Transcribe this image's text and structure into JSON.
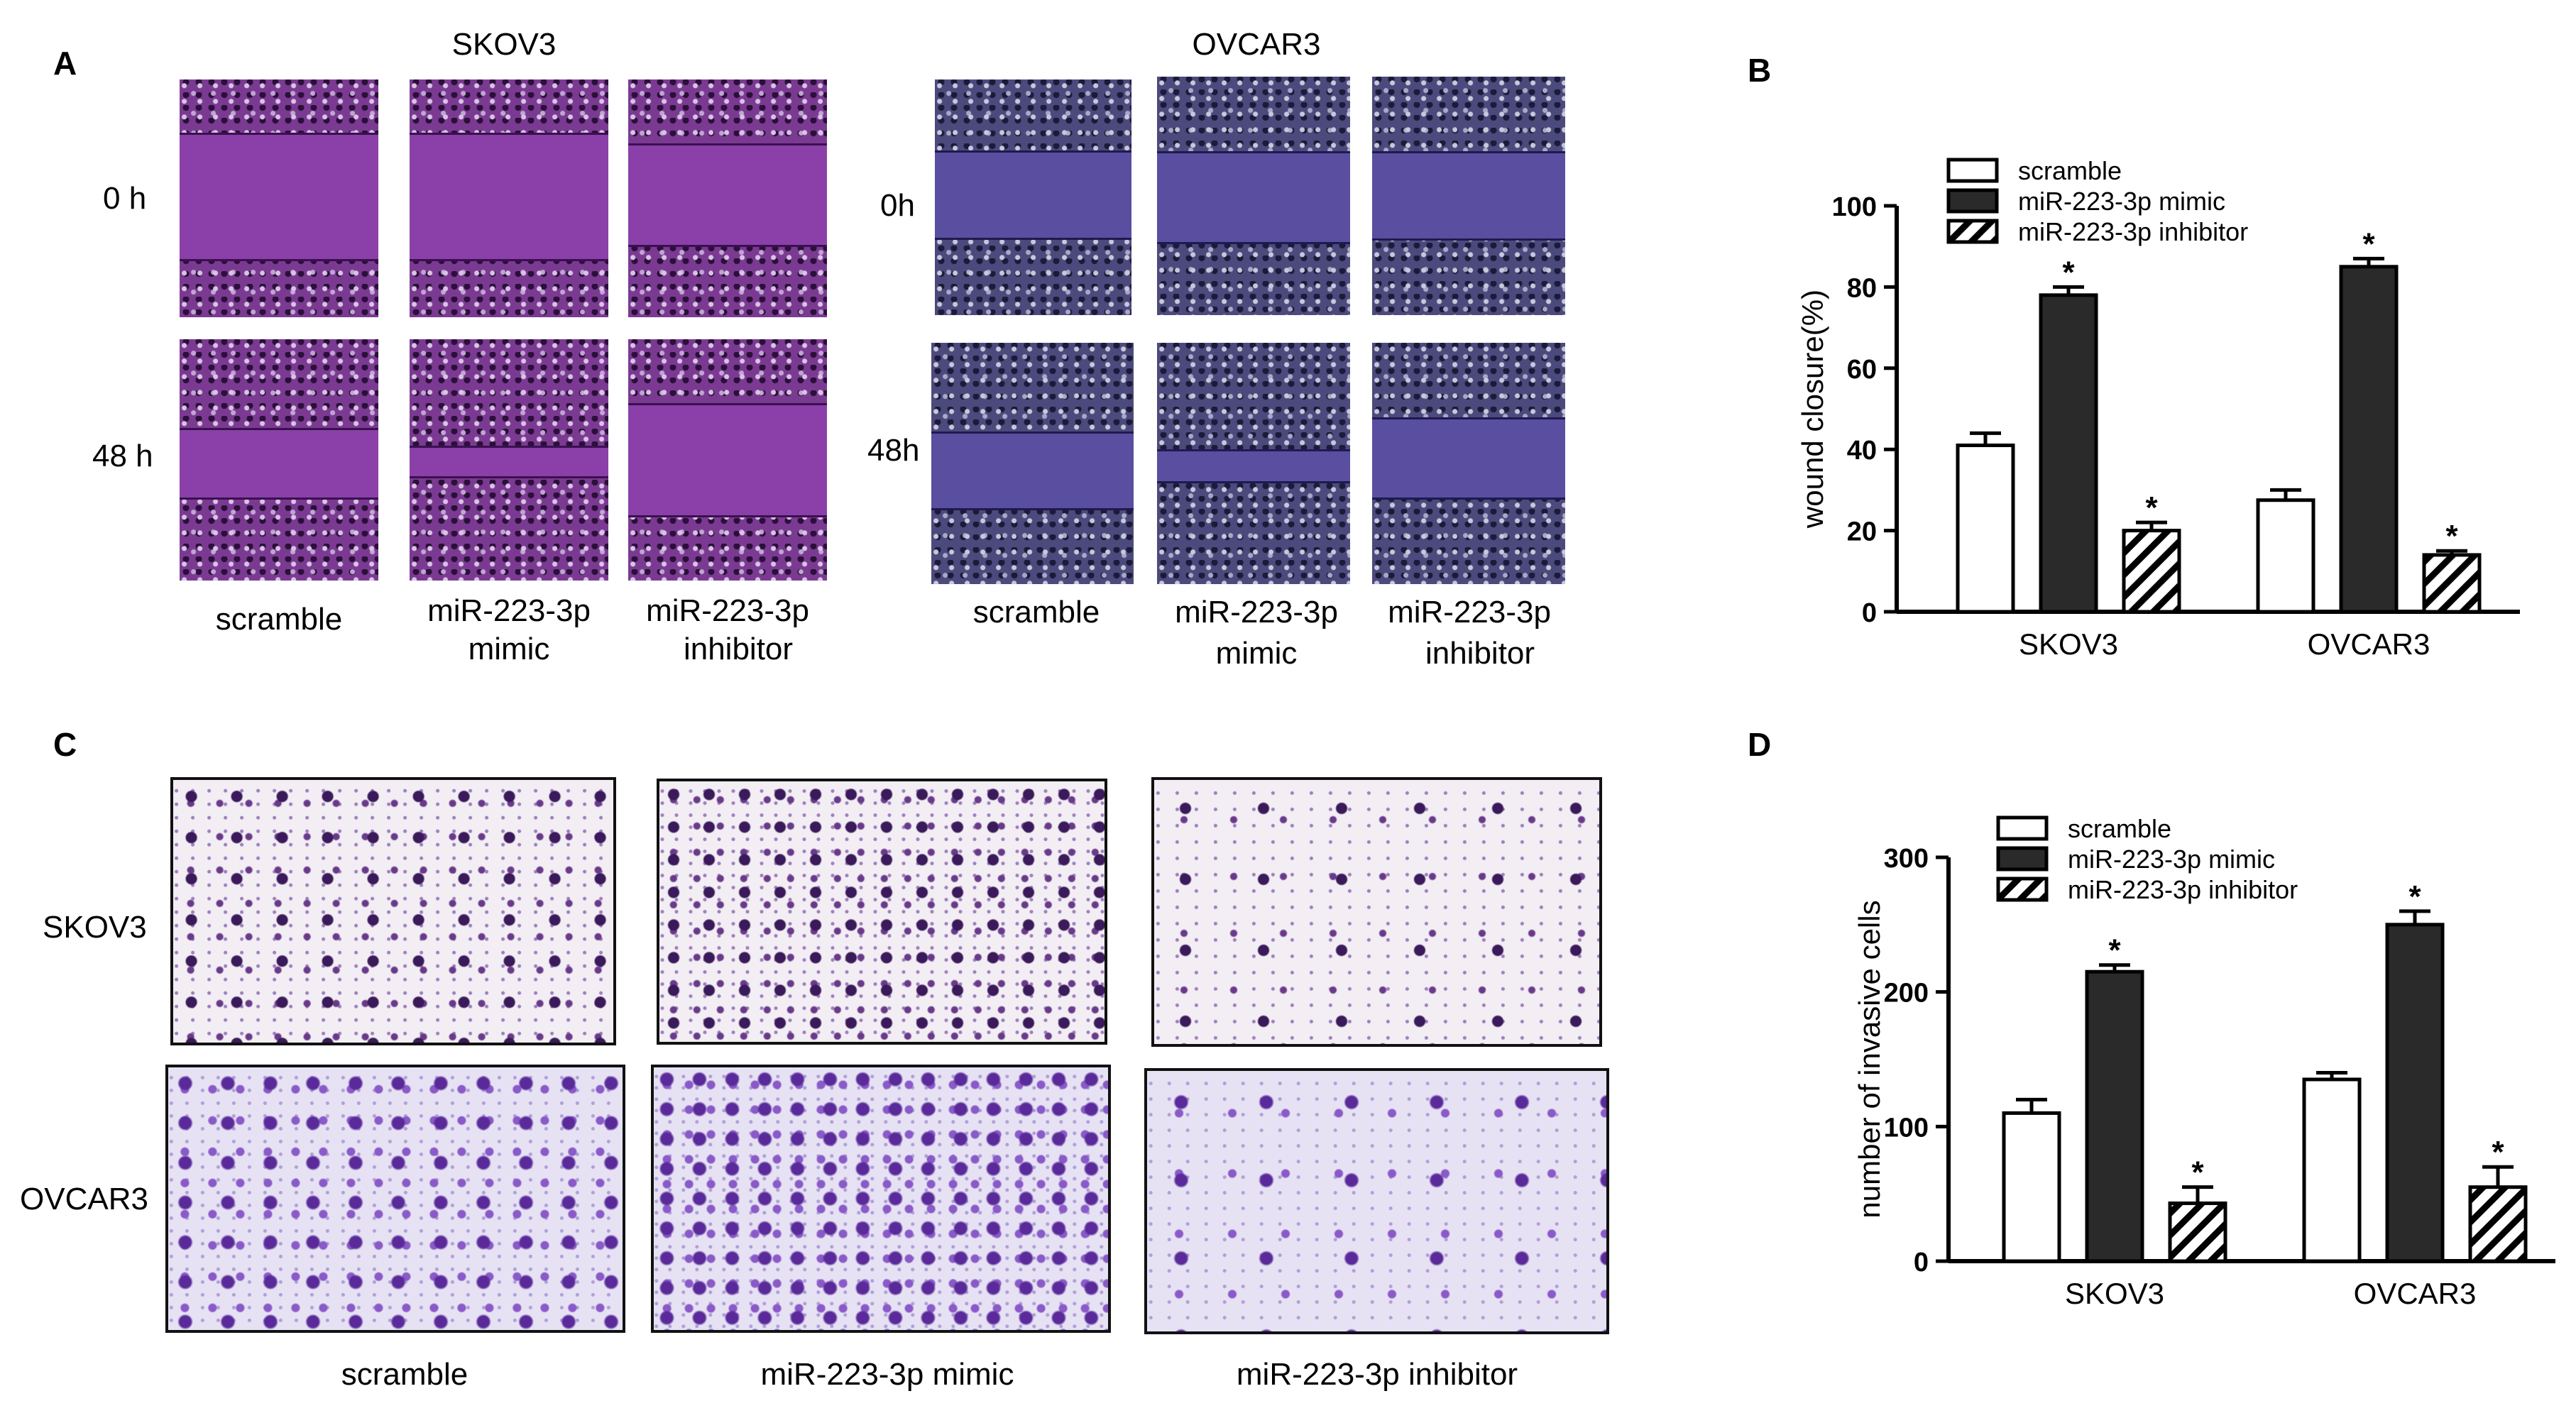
{
  "panels": {
    "a": "A",
    "b": "B",
    "c": "C",
    "d": "D"
  },
  "panel_a": {
    "cell_lines": [
      "SKOV3",
      "OVCAR3"
    ],
    "skov3_times": [
      "0 h",
      "48 h"
    ],
    "ovcar3_times": [
      "0h",
      "48h"
    ],
    "conditions": [
      {
        "line1": "scramble",
        "line2": ""
      },
      {
        "line1": "miR-223-3p",
        "line2": "mimic"
      },
      {
        "line1": "miR-223-3p",
        "line2": "inhibitor"
      }
    ]
  },
  "panel_c": {
    "rows": [
      "SKOV3",
      "OVCAR3"
    ],
    "conditions": [
      "scramble",
      "miR-223-3p mimic",
      "miR-223-3p inhibitor"
    ]
  },
  "chart_data": [
    {
      "type": "bar",
      "title": "",
      "categories": [
        "SKOV3",
        "OVCAR3"
      ],
      "ylabel": "wound closure(%)",
      "xlabel": "",
      "ylim": [
        0,
        100
      ],
      "yticks": [
        0,
        20,
        40,
        60,
        80,
        100
      ],
      "legend_position": "top-left",
      "series": [
        {
          "name": "scramble",
          "values": [
            41,
            27.5
          ],
          "errors": [
            3,
            2.5
          ],
          "significant": [
            false,
            false
          ]
        },
        {
          "name": "miR-223-3p mimic",
          "values": [
            78,
            85
          ],
          "errors": [
            2,
            2
          ],
          "significant": [
            true,
            true
          ]
        },
        {
          "name": "miR-223-3p inhibitor",
          "values": [
            20,
            14
          ],
          "errors": [
            2,
            1
          ],
          "significant": [
            true,
            true
          ]
        }
      ],
      "significance_mark": "*"
    },
    {
      "type": "bar",
      "title": "",
      "categories": [
        "SKOV3",
        "OVCAR3"
      ],
      "ylabel": "number of invasive cells",
      "xlabel": "",
      "ylim": [
        0,
        300
      ],
      "yticks": [
        0,
        100,
        200,
        300
      ],
      "legend_position": "top-left",
      "series": [
        {
          "name": "scramble",
          "values": [
            110,
            135
          ],
          "errors": [
            10,
            5
          ],
          "significant": [
            false,
            false
          ]
        },
        {
          "name": "miR-223-3p mimic",
          "values": [
            215,
            250
          ],
          "errors": [
            5,
            10
          ],
          "significant": [
            true,
            true
          ]
        },
        {
          "name": "miR-223-3p inhibitor",
          "values": [
            43,
            55
          ],
          "errors": [
            12,
            15
          ],
          "significant": [
            true,
            true
          ]
        }
      ],
      "significance_mark": "*"
    }
  ]
}
